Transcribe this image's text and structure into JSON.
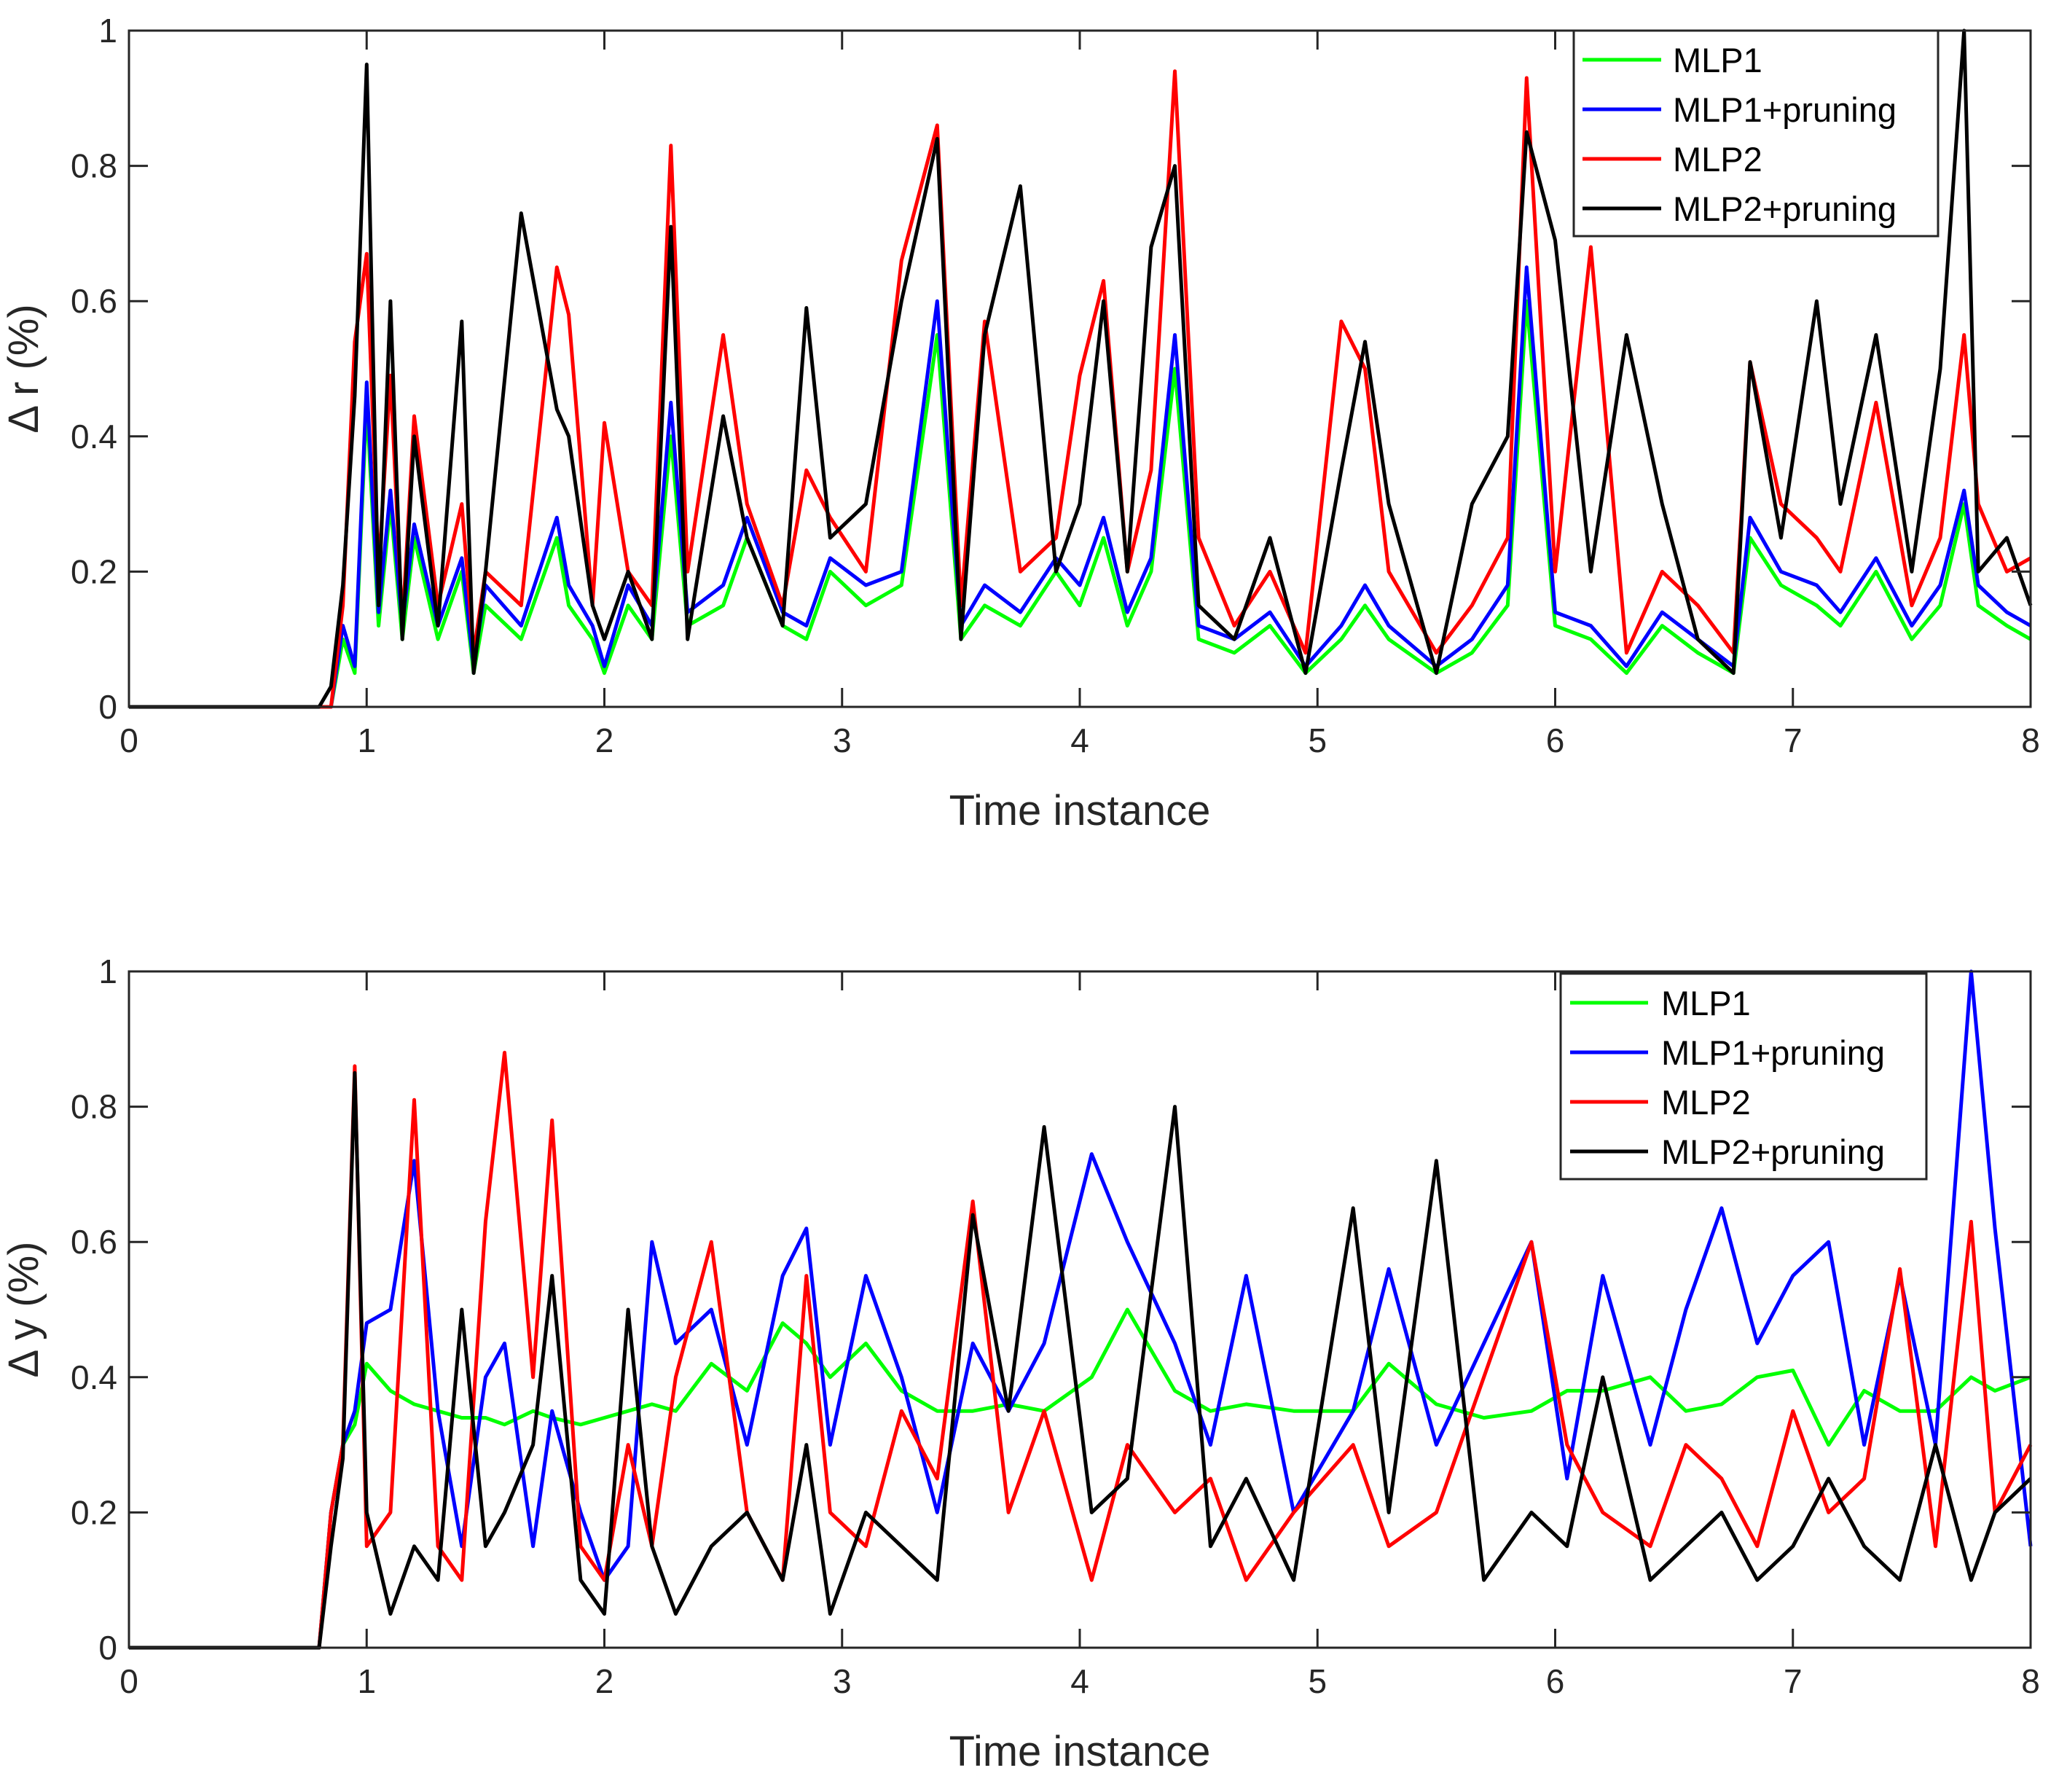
{
  "figure": {
    "title": "",
    "background": "#ffffff"
  },
  "series_colors": {
    "MLP1": "#00ff00",
    "MLP1+pruning": "#0000ff",
    "MLP2": "#ff0000",
    "MLP2+pruning": "#000000"
  },
  "chart_data": [
    {
      "type": "line",
      "title": "",
      "xlabel": "Time instance",
      "ylabel": "Δ r (%)",
      "xlim": [
        0,
        8
      ],
      "ylim": [
        0,
        1
      ],
      "xticks": [
        0,
        1,
        2,
        3,
        4,
        5,
        6,
        7,
        8
      ],
      "xtick_labels": [
        "0",
        "1",
        "2",
        "3",
        "4",
        "5",
        "6",
        "7",
        "8"
      ],
      "yticks": [
        0,
        0.2,
        0.4,
        0.6,
        0.8,
        1
      ],
      "ytick_labels": [
        "0",
        "0.2",
        "0.4",
        "0.6",
        "0.8",
        "1"
      ],
      "grid": false,
      "legend": {
        "position": "top-right",
        "entries": [
          "MLP1",
          "MLP1+pruning",
          "MLP2",
          "MLP2+pruning"
        ]
      },
      "x": [
        0,
        0.8,
        0.85,
        0.9,
        0.95,
        1.0,
        1.05,
        1.1,
        1.15,
        1.2,
        1.3,
        1.4,
        1.45,
        1.5,
        1.65,
        1.8,
        1.85,
        1.95,
        2.0,
        2.1,
        2.2,
        2.28,
        2.35,
        2.5,
        2.6,
        2.75,
        2.85,
        2.95,
        3.1,
        3.25,
        3.4,
        3.5,
        3.6,
        3.75,
        3.9,
        4.0,
        4.1,
        4.2,
        4.3,
        4.4,
        4.5,
        4.65,
        4.8,
        4.95,
        5.1,
        5.2,
        5.3,
        5.5,
        5.65,
        5.8,
        5.88,
        6.0,
        6.15,
        6.3,
        6.45,
        6.6,
        6.75,
        6.82,
        6.95,
        7.1,
        7.2,
        7.35,
        7.5,
        7.62,
        7.72,
        7.78,
        7.9,
        8.0
      ],
      "series": [
        {
          "name": "MLP1",
          "values": [
            0,
            0,
            0,
            0.1,
            0.05,
            0.45,
            0.12,
            0.3,
            0.1,
            0.25,
            0.1,
            0.2,
            0.05,
            0.15,
            0.1,
            0.25,
            0.15,
            0.1,
            0.05,
            0.15,
            0.1,
            0.4,
            0.12,
            0.15,
            0.25,
            0.12,
            0.1,
            0.2,
            0.15,
            0.18,
            0.55,
            0.1,
            0.15,
            0.12,
            0.2,
            0.15,
            0.25,
            0.12,
            0.2,
            0.5,
            0.1,
            0.08,
            0.12,
            0.05,
            0.1,
            0.15,
            0.1,
            0.05,
            0.08,
            0.15,
            0.6,
            0.12,
            0.1,
            0.05,
            0.12,
            0.08,
            0.05,
            0.25,
            0.18,
            0.15,
            0.12,
            0.2,
            0.1,
            0.15,
            0.3,
            0.15,
            0.12,
            0.1
          ]
        },
        {
          "name": "MLP1+pruning",
          "values": [
            0,
            0,
            0,
            0.12,
            0.06,
            0.48,
            0.14,
            0.32,
            0.12,
            0.27,
            0.12,
            0.22,
            0.06,
            0.18,
            0.12,
            0.28,
            0.18,
            0.12,
            0.06,
            0.18,
            0.12,
            0.45,
            0.14,
            0.18,
            0.28,
            0.14,
            0.12,
            0.22,
            0.18,
            0.2,
            0.6,
            0.12,
            0.18,
            0.14,
            0.22,
            0.18,
            0.28,
            0.14,
            0.22,
            0.55,
            0.12,
            0.1,
            0.14,
            0.06,
            0.12,
            0.18,
            0.12,
            0.06,
            0.1,
            0.18,
            0.65,
            0.14,
            0.12,
            0.06,
            0.14,
            0.1,
            0.06,
            0.28,
            0.2,
            0.18,
            0.14,
            0.22,
            0.12,
            0.18,
            0.32,
            0.18,
            0.14,
            0.12
          ]
        },
        {
          "name": "MLP2",
          "values": [
            0,
            0,
            0,
            0.15,
            0.54,
            0.67,
            0.2,
            0.49,
            0.12,
            0.43,
            0.15,
            0.3,
            0.08,
            0.2,
            0.15,
            0.65,
            0.58,
            0.15,
            0.42,
            0.2,
            0.15,
            0.83,
            0.2,
            0.55,
            0.3,
            0.15,
            0.35,
            0.28,
            0.2,
            0.66,
            0.86,
            0.15,
            0.57,
            0.2,
            0.25,
            0.49,
            0.63,
            0.2,
            0.35,
            0.94,
            0.25,
            0.12,
            0.2,
            0.08,
            0.57,
            0.5,
            0.2,
            0.08,
            0.15,
            0.25,
            0.93,
            0.2,
            0.68,
            0.08,
            0.2,
            0.15,
            0.08,
            0.51,
            0.3,
            0.25,
            0.2,
            0.45,
            0.15,
            0.25,
            0.55,
            0.3,
            0.2,
            0.22
          ]
        },
        {
          "name": "MLP2+pruning",
          "values": [
            0,
            0,
            0.03,
            0.18,
            0.46,
            0.95,
            0.15,
            0.6,
            0.1,
            0.4,
            0.12,
            0.57,
            0.05,
            0.2,
            0.73,
            0.44,
            0.4,
            0.15,
            0.1,
            0.2,
            0.1,
            0.71,
            0.1,
            0.43,
            0.25,
            0.12,
            0.59,
            0.25,
            0.3,
            0.6,
            0.84,
            0.1,
            0.55,
            0.77,
            0.2,
            0.3,
            0.6,
            0.2,
            0.68,
            0.8,
            0.15,
            0.1,
            0.25,
            0.05,
            0.35,
            0.54,
            0.3,
            0.05,
            0.3,
            0.4,
            0.85,
            0.69,
            0.2,
            0.55,
            0.3,
            0.1,
            0.05,
            0.51,
            0.25,
            0.6,
            0.3,
            0.55,
            0.2,
            0.5,
            1.0,
            0.2,
            0.25,
            0.15
          ]
        }
      ]
    },
    {
      "type": "line",
      "title": "",
      "xlabel": "Time instance",
      "ylabel": "Δ y (%)",
      "xlim": [
        0,
        8
      ],
      "ylim": [
        0,
        1
      ],
      "xticks": [
        0,
        1,
        2,
        3,
        4,
        5,
        6,
        7,
        8
      ],
      "xtick_labels": [
        "0",
        "1",
        "2",
        "3",
        "4",
        "5",
        "6",
        "7",
        "8"
      ],
      "yticks": [
        0,
        0.2,
        0.4,
        0.6,
        0.8,
        1
      ],
      "ytick_labels": [
        "0",
        "0.2",
        "0.4",
        "0.6",
        "0.8",
        "1"
      ],
      "grid": false,
      "legend": {
        "position": "top-right",
        "entries": [
          "MLP1",
          "MLP1+pruning",
          "MLP2",
          "MLP2+pruning"
        ]
      },
      "x": [
        0,
        0.8,
        0.85,
        0.9,
        0.95,
        1.0,
        1.1,
        1.2,
        1.3,
        1.4,
        1.5,
        1.58,
        1.7,
        1.78,
        1.9,
        2.0,
        2.1,
        2.2,
        2.3,
        2.45,
        2.6,
        2.75,
        2.85,
        2.95,
        3.1,
        3.25,
        3.4,
        3.55,
        3.7,
        3.85,
        4.05,
        4.2,
        4.4,
        4.55,
        4.7,
        4.9,
        5.15,
        5.3,
        5.5,
        5.7,
        5.9,
        6.05,
        6.2,
        6.4,
        6.55,
        6.7,
        6.85,
        7.0,
        7.15,
        7.3,
        7.45,
        7.6,
        7.75,
        7.85,
        8.0
      ],
      "series": [
        {
          "name": "MLP1",
          "values": [
            0,
            0,
            0.2,
            0.3,
            0.33,
            0.42,
            0.38,
            0.36,
            0.35,
            0.34,
            0.34,
            0.33,
            0.35,
            0.34,
            0.33,
            0.34,
            0.35,
            0.36,
            0.35,
            0.42,
            0.38,
            0.48,
            0.45,
            0.4,
            0.45,
            0.38,
            0.35,
            0.35,
            0.36,
            0.35,
            0.4,
            0.5,
            0.38,
            0.35,
            0.36,
            0.35,
            0.35,
            0.42,
            0.36,
            0.34,
            0.35,
            0.38,
            0.38,
            0.4,
            0.35,
            0.36,
            0.4,
            0.41,
            0.3,
            0.38,
            0.35,
            0.35,
            0.4,
            0.38,
            0.4
          ]
        },
        {
          "name": "MLP1+pruning",
          "values": [
            0,
            0,
            0.2,
            0.3,
            0.35,
            0.48,
            0.5,
            0.72,
            0.35,
            0.15,
            0.4,
            0.45,
            0.15,
            0.35,
            0.2,
            0.1,
            0.15,
            0.6,
            0.45,
            0.5,
            0.3,
            0.55,
            0.62,
            0.3,
            0.55,
            0.4,
            0.2,
            0.45,
            0.35,
            0.45,
            0.73,
            0.6,
            0.45,
            0.3,
            0.55,
            0.2,
            0.35,
            0.56,
            0.3,
            0.45,
            0.6,
            0.25,
            0.55,
            0.3,
            0.5,
            0.65,
            0.45,
            0.55,
            0.6,
            0.3,
            0.55,
            0.3,
            1.0,
            0.62,
            0.15
          ]
        },
        {
          "name": "MLP2",
          "values": [
            0,
            0,
            0.2,
            0.3,
            0.86,
            0.15,
            0.2,
            0.81,
            0.15,
            0.1,
            0.63,
            0.88,
            0.4,
            0.78,
            0.15,
            0.1,
            0.3,
            0.15,
            0.4,
            0.6,
            0.2,
            0.1,
            0.55,
            0.2,
            0.15,
            0.35,
            0.25,
            0.66,
            0.2,
            0.35,
            0.1,
            0.3,
            0.2,
            0.25,
            0.1,
            0.2,
            0.3,
            0.15,
            0.2,
            0.4,
            0.6,
            0.3,
            0.2,
            0.15,
            0.3,
            0.25,
            0.15,
            0.35,
            0.2,
            0.25,
            0.56,
            0.15,
            0.63,
            0.2,
            0.3
          ]
        },
        {
          "name": "MLP2+pruning",
          "values": [
            0,
            0,
            0.15,
            0.28,
            0.85,
            0.2,
            0.05,
            0.15,
            0.1,
            0.5,
            0.15,
            0.2,
            0.3,
            0.55,
            0.1,
            0.05,
            0.5,
            0.15,
            0.05,
            0.15,
            0.2,
            0.1,
            0.3,
            0.05,
            0.2,
            0.15,
            0.1,
            0.64,
            0.35,
            0.77,
            0.2,
            0.25,
            0.8,
            0.15,
            0.25,
            0.1,
            0.65,
            0.2,
            0.72,
            0.1,
            0.2,
            0.15,
            0.4,
            0.1,
            0.15,
            0.2,
            0.1,
            0.15,
            0.25,
            0.15,
            0.1,
            0.3,
            0.1,
            0.2,
            0.25
          ]
        }
      ]
    }
  ]
}
